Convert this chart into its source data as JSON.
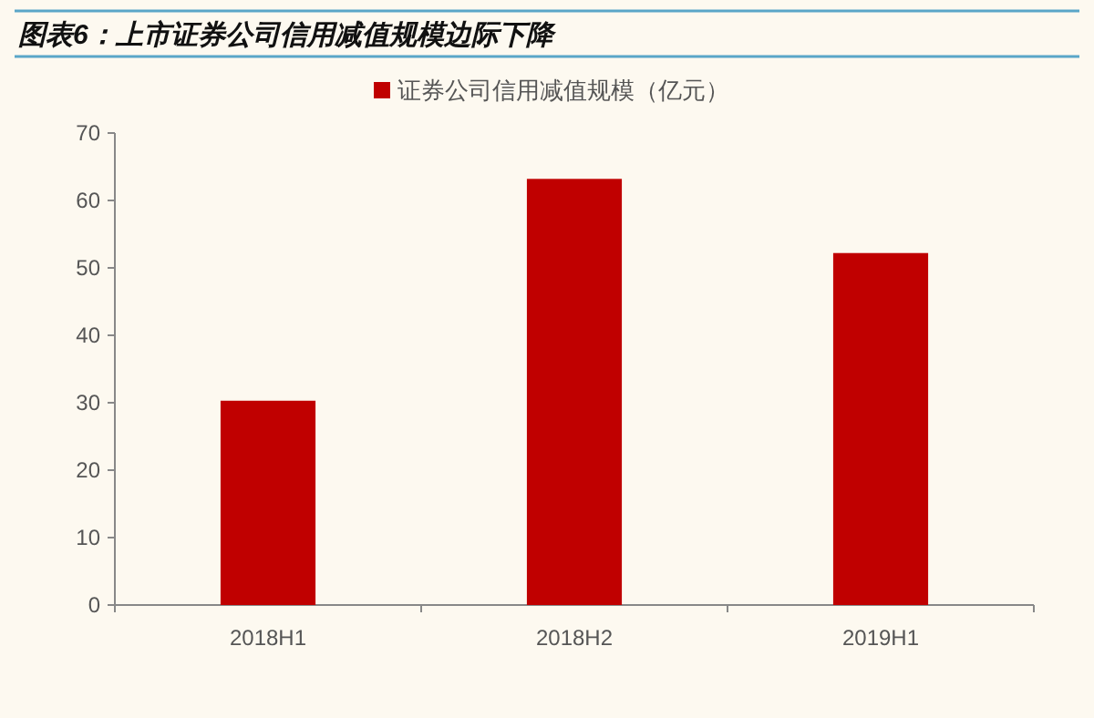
{
  "chart_data": {
    "type": "bar",
    "title": "图表6：上市证券公司信用减值规模边际下降",
    "categories": [
      "2018H1",
      "2018H2",
      "2019H1"
    ],
    "series": [
      {
        "name": "证券公司信用减值规模（亿元）",
        "color": "#c00000",
        "values": [
          30.3,
          63.2,
          52.2
        ]
      }
    ],
    "ylim": [
      0,
      70
    ],
    "yticks": [
      0,
      10,
      20,
      30,
      40,
      50,
      60,
      70
    ],
    "grid": false,
    "legend": "top"
  }
}
